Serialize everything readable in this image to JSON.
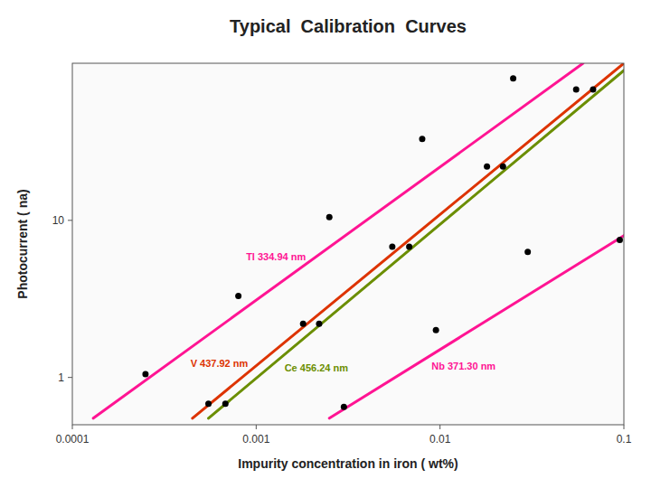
{
  "chart_data": {
    "type": "line",
    "title": "Typical  Calibration  Curves",
    "x_label": "Impurity concentration in iron ( wt%)",
    "y_label": "Photocurrent ( na)",
    "log": true,
    "grid": false,
    "xlim": [
      0.0001,
      0.1
    ],
    "ylim": [
      0.5,
      100
    ],
    "xticks": [
      0.0001,
      0.001,
      0.01,
      0.1
    ],
    "yticks": [
      1,
      10
    ],
    "series": [
      {
        "name": "Tl 334.94 nm",
        "type": "line",
        "color": "#ff1493",
        "x": [
          0.00013,
          0.06
        ],
        "values": [
          0.55,
          100
        ]
      },
      {
        "type": "scatter",
        "color": "#000000",
        "x": [
          0.00025,
          0.0008,
          0.0025,
          0.008,
          0.025
        ],
        "values": [
          1.05,
          3.3,
          10.5,
          33,
          80
        ]
      },
      {
        "name": "V 437.92 nm",
        "type": "line",
        "color": "#dd3300",
        "x": [
          0.00045,
          0.1
        ],
        "values": [
          0.55,
          100
        ]
      },
      {
        "type": "scatter",
        "color": "#000000",
        "x": [
          0.00055,
          0.0018,
          0.0055,
          0.018,
          0.055
        ],
        "values": [
          0.68,
          2.2,
          6.8,
          22,
          68
        ]
      },
      {
        "name": "Ce 456.24 nm",
        "type": "line",
        "color": "#6b8e00",
        "x": [
          0.00055,
          0.1
        ],
        "values": [
          0.55,
          90
        ]
      },
      {
        "type": "scatter",
        "color": "#000000",
        "x": [
          0.00068,
          0.0022,
          0.0068,
          0.022,
          0.068
        ],
        "values": [
          0.68,
          2.2,
          6.8,
          22,
          68
        ]
      },
      {
        "name": "Nb 371.30 nm",
        "type": "line",
        "color": "#ff1493",
        "x": [
          0.0025,
          0.1
        ],
        "values": [
          0.55,
          8
        ]
      },
      {
        "type": "scatter",
        "color": "#000000",
        "x": [
          0.003,
          0.0095,
          0.03,
          0.095
        ],
        "values": [
          0.65,
          2.0,
          6.3,
          7.5
        ]
      }
    ]
  }
}
